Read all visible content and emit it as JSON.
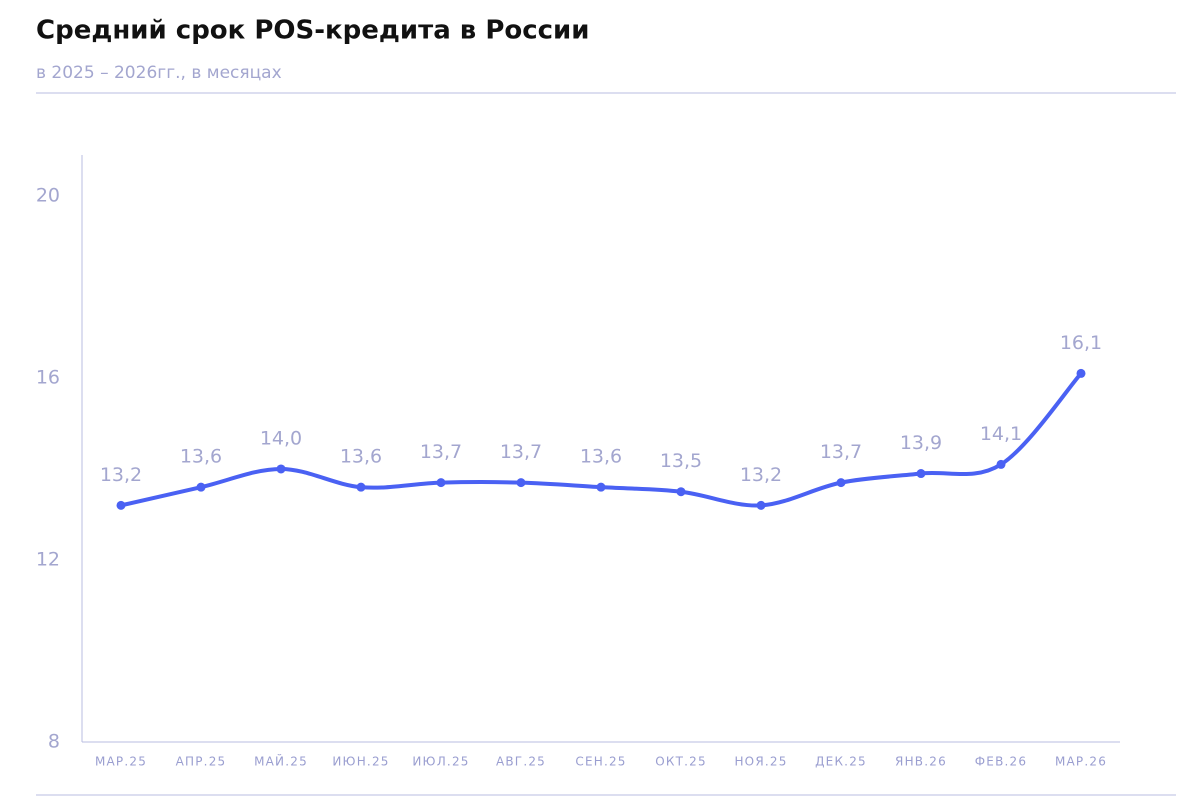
{
  "chart_data": {
    "type": "line",
    "title": "Средний срок POS-кредита в России",
    "subtitle": "в 2025 – 2026гг., в месяцах",
    "categories": [
      "МАР.25",
      "АПР.25",
      "МАЙ.25",
      "ИЮН.25",
      "ИЮЛ.25",
      "АВГ.25",
      "СЕН.25",
      "ОКТ.25",
      "НОЯ.25",
      "ДЕК.25",
      "ЯНВ.26",
      "ФЕВ.26",
      "МАР.26"
    ],
    "values": [
      13.2,
      13.6,
      14.0,
      13.6,
      13.7,
      13.7,
      13.6,
      13.5,
      13.2,
      13.7,
      13.9,
      14.1,
      16.1
    ],
    "value_labels": [
      "13,2",
      "13,6",
      "14,0",
      "13,6",
      "13,7",
      "13,7",
      "13,6",
      "13,5",
      "13,2",
      "13,7",
      "13,9",
      "14,1",
      "16,1"
    ],
    "color": "#4a61f3",
    "ylim": [
      8,
      20.9
    ],
    "yticks": [
      8,
      12,
      16,
      20
    ],
    "grid": false
  }
}
